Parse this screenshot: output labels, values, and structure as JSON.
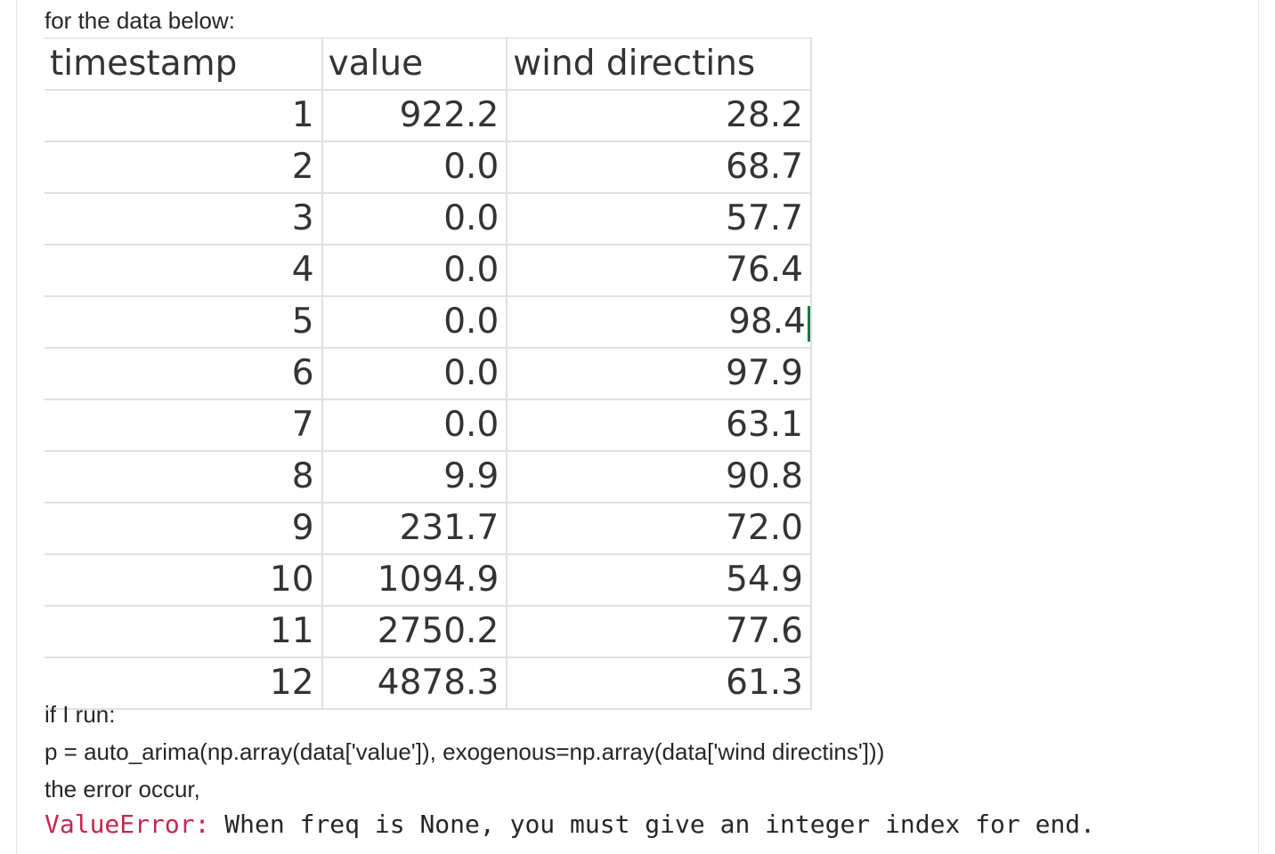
{
  "intro_text": "for the data below:",
  "table": {
    "headers": [
      "timestamp",
      "value",
      "wind directins"
    ],
    "rows": [
      {
        "timestamp": "1",
        "value": "922.2",
        "wind": "28.2"
      },
      {
        "timestamp": "2",
        "value": "0.0",
        "wind": "68.7"
      },
      {
        "timestamp": "3",
        "value": "0.0",
        "wind": "57.7"
      },
      {
        "timestamp": "4",
        "value": "0.0",
        "wind": "76.4"
      },
      {
        "timestamp": "5",
        "value": "0.0",
        "wind": "98.4"
      },
      {
        "timestamp": "6",
        "value": "0.0",
        "wind": "97.9"
      },
      {
        "timestamp": "7",
        "value": "0.0",
        "wind": "63.1"
      },
      {
        "timestamp": "8",
        "value": "9.9",
        "wind": "90.8"
      },
      {
        "timestamp": "9",
        "value": "231.7",
        "wind": "72.0"
      },
      {
        "timestamp": "10",
        "value": "1094.9",
        "wind": "54.9"
      },
      {
        "timestamp": "11",
        "value": "2750.2",
        "wind": "77.6"
      },
      {
        "timestamp": "12",
        "value": "4878.3",
        "wind": "61.3"
      }
    ]
  },
  "run_label": "if I run:",
  "code_line": "p = auto_arima(np.array(data['value']), exogenous=np.array(data['wind directins']))",
  "error_intro": "the error occur,",
  "error": {
    "type": "ValueError:",
    "message": " When freq is None, you must give an integer index for end.",
    "type_color": "#c7254e"
  }
}
